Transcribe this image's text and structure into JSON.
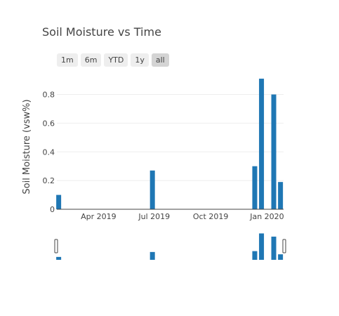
{
  "title": "Soil Moisture vs Time",
  "range_selector": {
    "buttons": [
      {
        "label": "1m",
        "active": false
      },
      {
        "label": "6m",
        "active": false
      },
      {
        "label": "YTD",
        "active": false
      },
      {
        "label": "1y",
        "active": false
      },
      {
        "label": "all",
        "active": true
      }
    ]
  },
  "chart_data": {
    "type": "bar",
    "title": "Soil Moisture vs Time",
    "xlabel": "",
    "ylabel": "Soil Moisture (vsw%)",
    "x_ticks": [
      "Apr 2019",
      "Jul 2019",
      "Oct 2019",
      "Jan 2020"
    ],
    "y_ticks": [
      "0",
      "0.2",
      "0.4",
      "0.6",
      "0.8"
    ],
    "ylim": [
      0,
      0.92
    ],
    "xlim": [
      "2019-01-23",
      "2020-01-28"
    ],
    "grid": "y",
    "rangeslider": true,
    "bar_color": "#1f77b4",
    "series": [
      {
        "x": [
          "2019-01-26",
          "2019-06-28",
          "2019-12-12",
          "2019-12-23",
          "2020-01-12",
          "2020-01-23"
        ],
        "values": [
          0.1,
          0.27,
          0.3,
          0.91,
          0.8,
          0.19
        ]
      }
    ]
  }
}
